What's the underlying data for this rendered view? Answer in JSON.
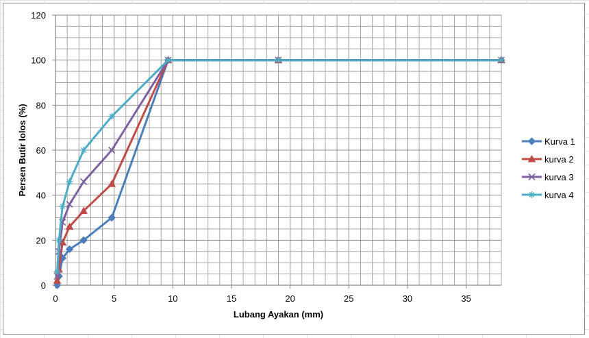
{
  "chart_data": {
    "type": "line",
    "xlabel": "Lubang Ayakan (mm)",
    "ylabel": "Persen Butir lolos (%)",
    "xlim": [
      0,
      38
    ],
    "ylim": [
      0,
      120
    ],
    "x_ticks": [
      0,
      5,
      10,
      15,
      20,
      25,
      30,
      35
    ],
    "y_ticks": [
      0,
      20,
      40,
      60,
      80,
      100,
      120
    ],
    "x_minor_step": 1,
    "y_minor_step": 5,
    "grid": true,
    "legend_position": "right",
    "x": [
      0.15,
      0.3,
      0.6,
      1.2,
      2.4,
      4.8,
      9.6,
      19,
      38
    ],
    "series": [
      {
        "name": "Kurva 1",
        "marker": "diamond",
        "color": "#4a7ebb",
        "values": [
          0,
          4,
          12,
          16,
          20,
          30,
          100,
          100,
          100
        ]
      },
      {
        "name": "kurva 2",
        "marker": "triangle",
        "color": "#be4b48",
        "values": [
          2,
          7,
          19,
          26,
          33,
          45,
          100,
          100,
          100
        ]
      },
      {
        "name": "kurva 3",
        "marker": "x",
        "color": "#7d60a0",
        "values": [
          4,
          15,
          28,
          36,
          46,
          60,
          100,
          100,
          100
        ]
      },
      {
        "name": "kurva 4",
        "marker": "plus",
        "color": "#4bacc6",
        "values": [
          6,
          20,
          35,
          46,
          60,
          75,
          100,
          100,
          100
        ]
      }
    ]
  }
}
